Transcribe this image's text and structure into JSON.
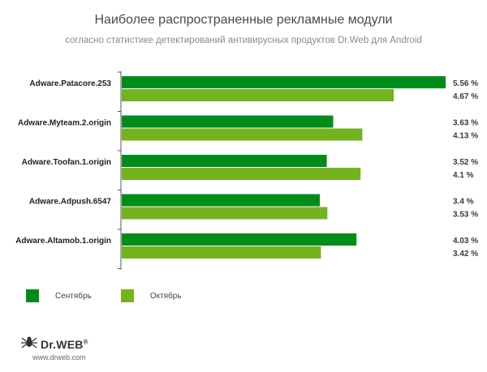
{
  "header": {
    "title": "Наиболее распространенные рекламные модули",
    "subtitle": "согласно статистике детектирований антивирусных продуктов Dr.Web для Android"
  },
  "legend": {
    "items": [
      {
        "label": "Сентябрь",
        "color": "#008c1a"
      },
      {
        "label": "Октябрь",
        "color": "#72b31f"
      }
    ]
  },
  "brand": {
    "name": "Dr.WEB",
    "mark": "®",
    "url": "www.drweb.com",
    "icon": "spider-icon"
  },
  "chart_data": {
    "type": "bar",
    "orientation": "horizontal",
    "title": "Наиболее распространенные рекламные модули",
    "subtitle": "согласно статистике детектирований антивирусных продуктов Dr.Web для Android",
    "categories": [
      "Adware.Patacore.253",
      "Adware.Myteam.2.origin",
      "Adware.Toofan.1.origin",
      "Adware.Adpush.6547",
      "Adware.Altamob.1.origin"
    ],
    "series": [
      {
        "name": "Сентябрь",
        "color": "#008c1a",
        "values": [
          5.56,
          3.63,
          3.52,
          3.4,
          4.03
        ],
        "labels": [
          "5.56 %",
          "3.63 %",
          "3.52 %",
          "3.4 %",
          "4.03 %"
        ]
      },
      {
        "name": "Октябрь",
        "color": "#72b31f",
        "values": [
          4.67,
          4.13,
          4.1,
          3.53,
          3.42
        ],
        "labels": [
          "4.67 %",
          "4.13 %",
          "4.1 %",
          "3.53 %",
          "3.42 %"
        ]
      }
    ],
    "xlim": [
      0,
      5.56
    ],
    "grid": false,
    "legend_position": "bottom-left"
  }
}
